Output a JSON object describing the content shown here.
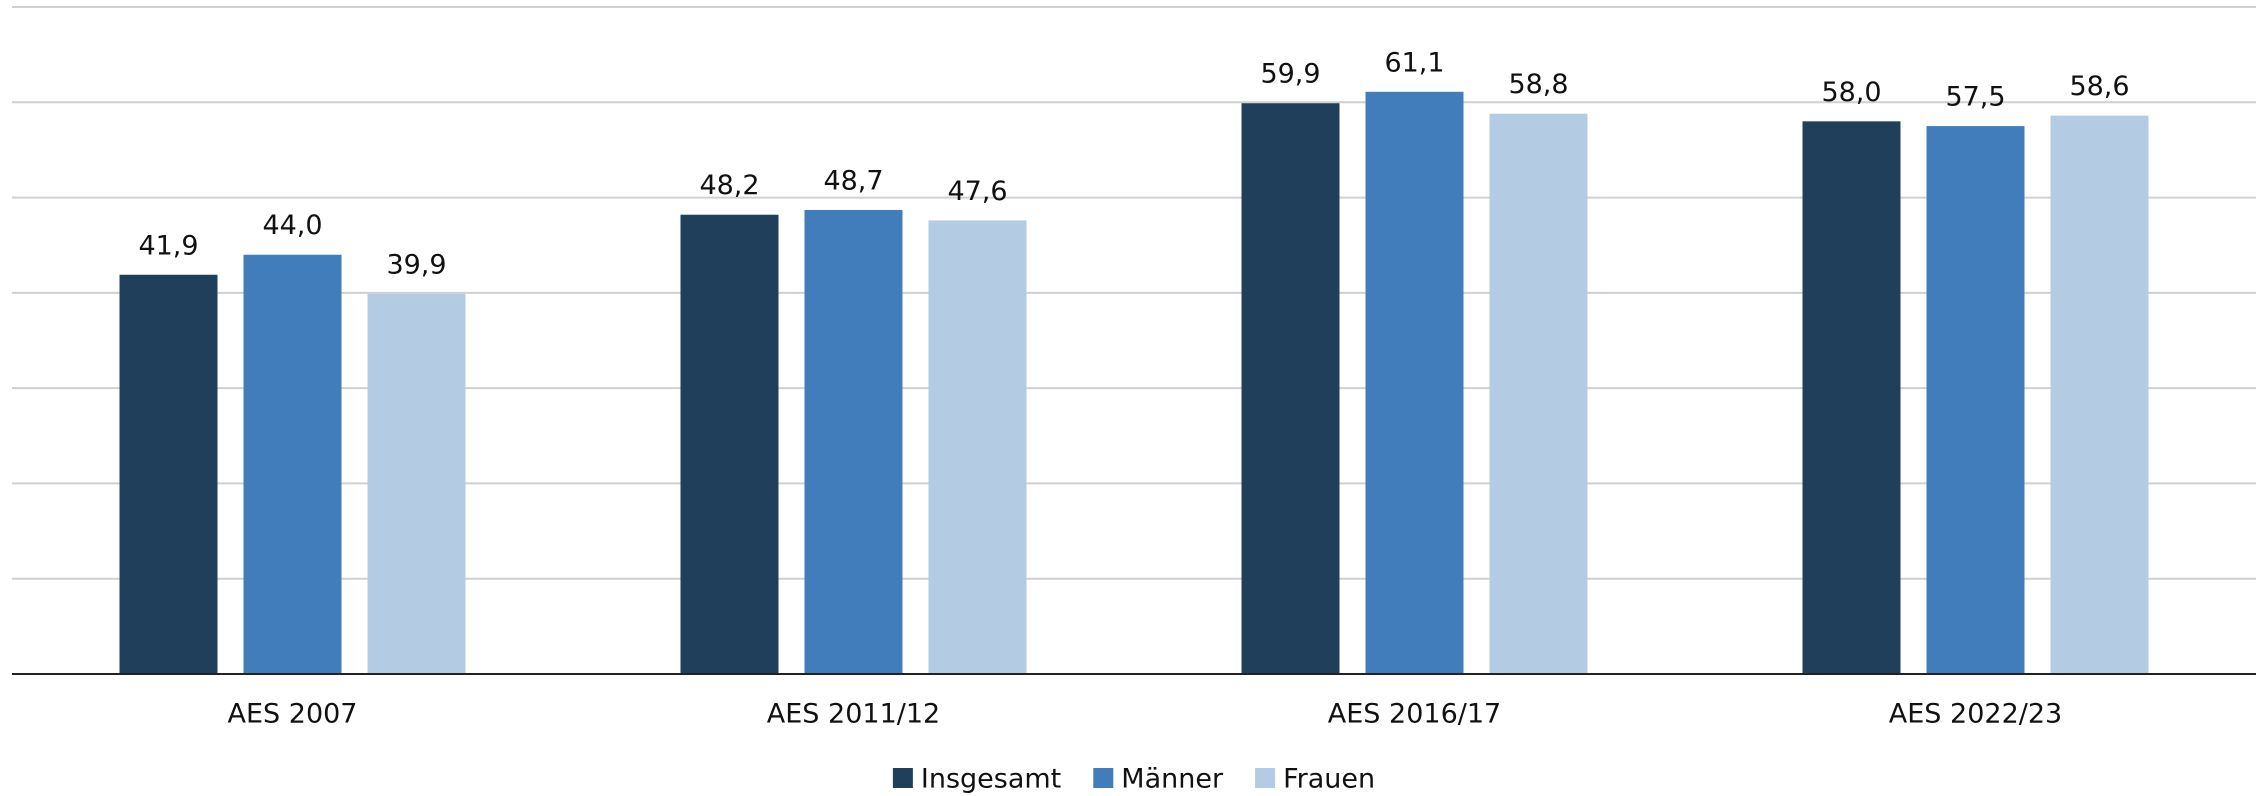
{
  "chart_data": {
    "type": "bar",
    "categories": [
      "AES 2007",
      "AES 2011/12",
      "AES 2016/17",
      "AES 2022/23"
    ],
    "series": [
      {
        "name": "Insgesamt",
        "color": "#203f5b",
        "values": [
          41.9,
          48.2,
          59.9,
          58.0
        ],
        "value_labels": [
          "41,9",
          "48,2",
          "59,9",
          "58,0"
        ]
      },
      {
        "name": "Männer",
        "color": "#417dba",
        "values": [
          44.0,
          48.7,
          61.1,
          57.5
        ],
        "value_labels": [
          "44,0",
          "48,7",
          "61,1",
          "57,5"
        ]
      },
      {
        "name": "Frauen",
        "color": "#b3cce3",
        "values": [
          39.9,
          47.6,
          58.8,
          58.6
        ],
        "value_labels": [
          "39,9",
          "47,6",
          "58,8",
          "58,6"
        ]
      }
    ],
    "ylim": [
      0,
      70
    ],
    "yticks": [
      0,
      10,
      20,
      30,
      40,
      50,
      60,
      70
    ],
    "grid": true,
    "legend": "bottom"
  }
}
